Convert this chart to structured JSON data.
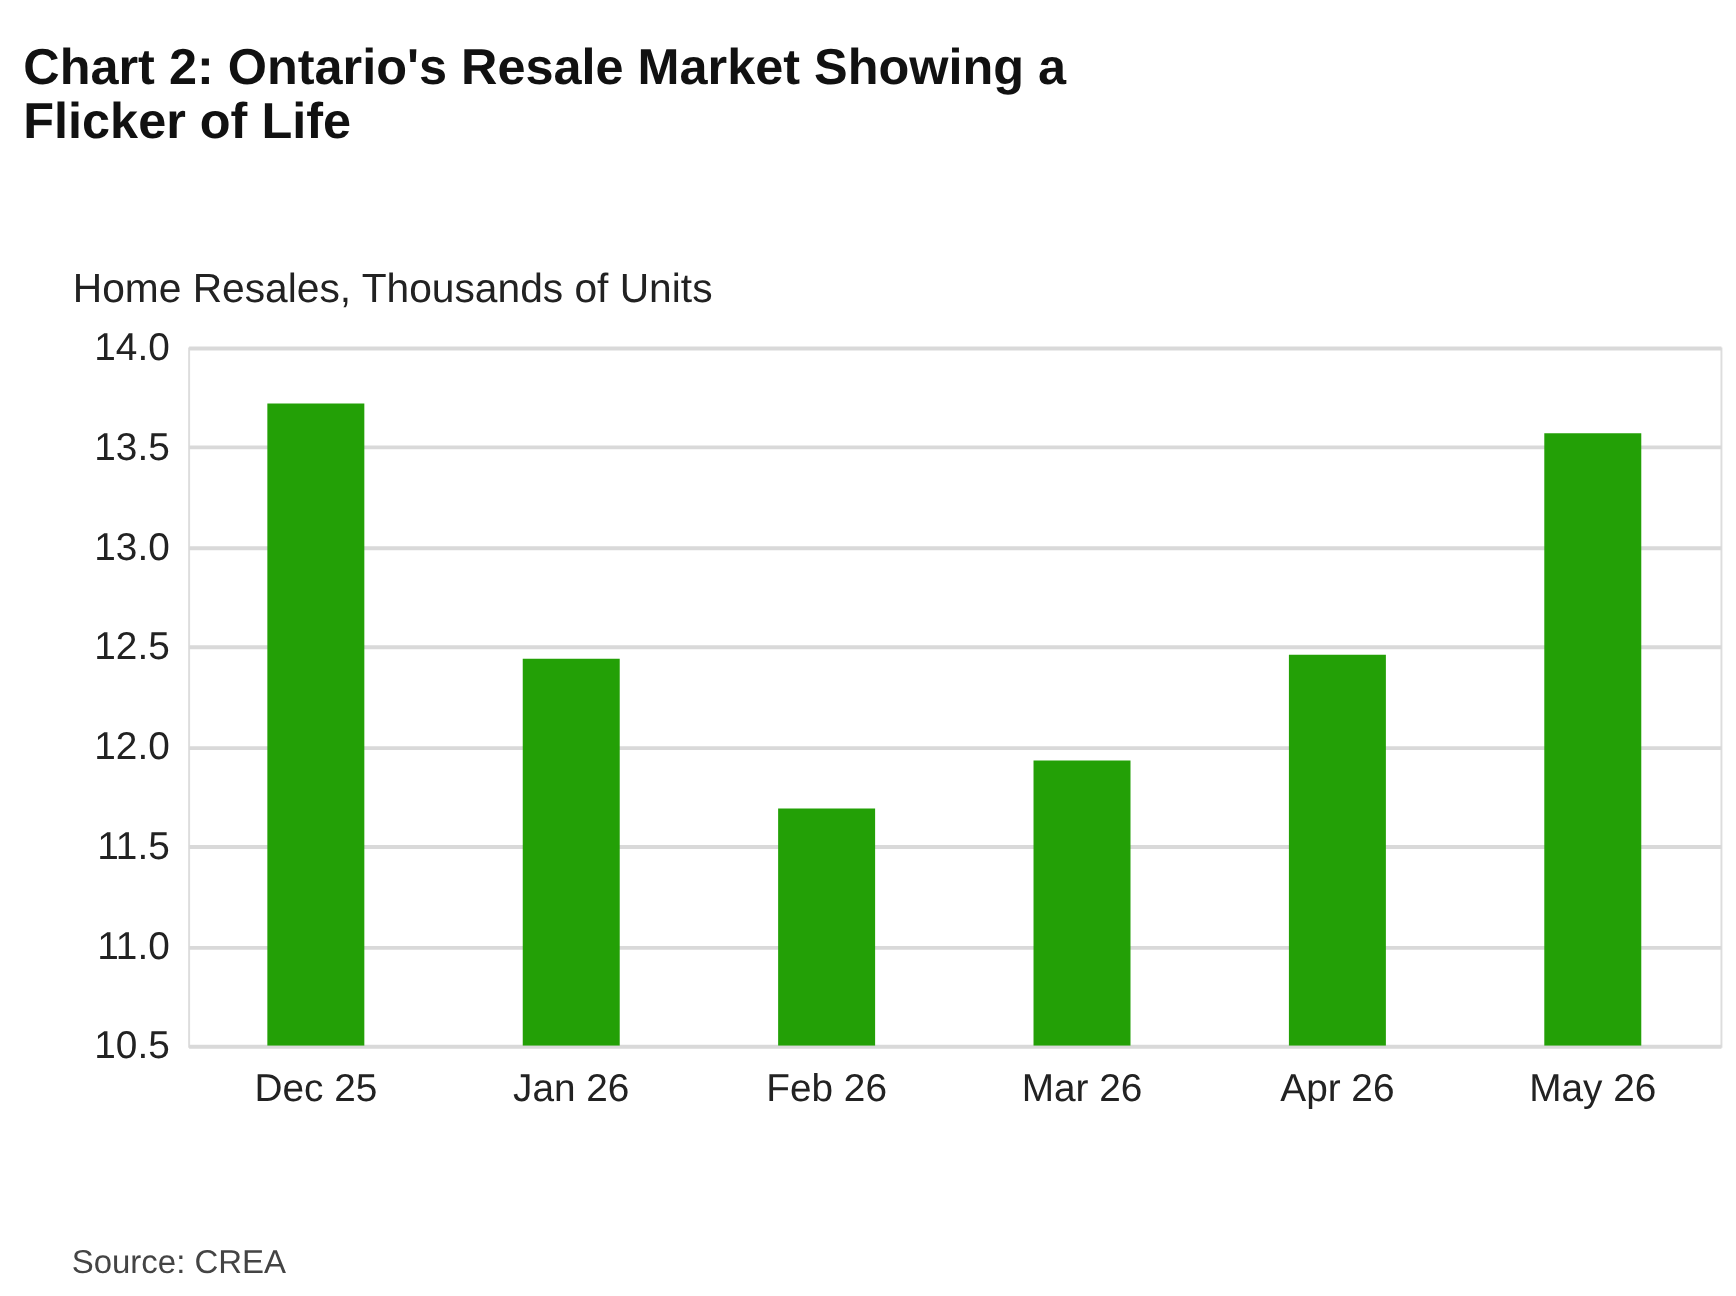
{
  "chart_data": {
    "type": "bar",
    "title": "Chart 2: Ontario's Resale Market Showing a Flicker of Life",
    "ylabel": "Home Resales, Thousands of Units",
    "categories": [
      "Dec 25",
      "Jan 26",
      "Feb 26",
      "Mar 26",
      "Apr 26",
      "May 26"
    ],
    "values": [
      13.72,
      12.44,
      11.69,
      11.93,
      12.46,
      13.57
    ],
    "color": "#23a006",
    "ylim": [
      10.5,
      14.0
    ],
    "yticks": [
      {
        "value": 10.5,
        "label": "10.5"
      },
      {
        "value": 11.0,
        "label": "11.0"
      },
      {
        "value": 11.5,
        "label": "11.5"
      },
      {
        "value": 12.0,
        "label": "12.0"
      },
      {
        "value": 12.5,
        "label": "12.5"
      },
      {
        "value": 13.0,
        "label": "13.0"
      },
      {
        "value": 13.5,
        "label": "13.5"
      },
      {
        "value": 14.0,
        "label": "14.0"
      }
    ],
    "grid": "y",
    "annotations": [
      "Source: CREA"
    ]
  }
}
